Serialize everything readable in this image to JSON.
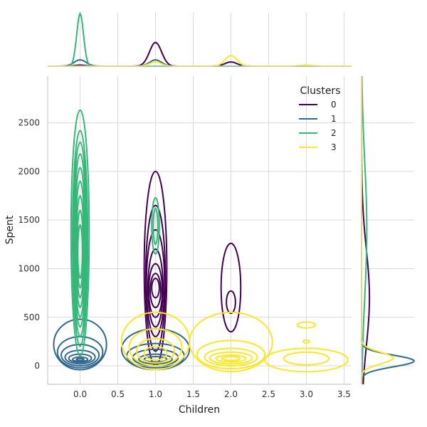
{
  "chart_data": {
    "type": "kde-jointplot",
    "xlabel": "Children",
    "ylabel": "Spent",
    "xlim": [
      -0.43,
      3.6
    ],
    "ylim": [
      -190,
      2980
    ],
    "x_ticks": [
      "0.0",
      "0.5",
      "1.0",
      "1.5",
      "2.0",
      "2.5",
      "3.0",
      "3.5"
    ],
    "x_tick_values": [
      0,
      0.5,
      1,
      1.5,
      2,
      2.5,
      3,
      3.5
    ],
    "y_ticks": [
      "0",
      "500",
      "1000",
      "1500",
      "2000",
      "2500"
    ],
    "y_tick_values": [
      0,
      500,
      1000,
      1500,
      2000,
      2500
    ],
    "grid": true,
    "legend": {
      "title": "Clusters",
      "placement": "top-right",
      "entries": [
        "0",
        "1",
        "2",
        "3"
      ]
    },
    "colors": {
      "0": "#440154",
      "1": "#31688e",
      "2": "#35b779",
      "3": "#fde725"
    },
    "series": [
      {
        "name": "0",
        "color": "#440154",
        "clusters": [
          {
            "x": 1.0,
            "y": 1000,
            "contour_x_halfwidths": [
              0.15,
              0.13,
              0.12,
              0.1,
              0.09,
              0.07,
              0.05
            ],
            "contour_y_ranges": [
              [
                0,
                2000
              ],
              [
                150,
                1650
              ],
              [
                300,
                1400
              ],
              [
                400,
                1200
              ],
              [
                500,
                1050
              ],
              [
                600,
                950
              ],
              [
                700,
                900
              ]
            ]
          },
          {
            "x": 2.0,
            "y": 800,
            "contour_x_halfwidths": [
              0.13,
              0.06
            ],
            "contour_y_ranges": [
              [
                350,
                1260
              ],
              [
                540,
                770
              ]
            ]
          }
        ],
        "marginal_x_peaks": [
          {
            "x": 1.0,
            "rel_height": 0.45
          },
          {
            "x": 2.0,
            "rel_height": 0.08
          },
          {
            "x": 0.0,
            "rel_height": 0.02
          }
        ],
        "marginal_y_peak": {
          "y": 700,
          "rel_width": 0.15
        }
      },
      {
        "name": "1",
        "color": "#31688e",
        "clusters": [
          {
            "x": 0.0,
            "y": 80,
            "contour_x_halfwidths": [
              0.35,
              0.3,
              0.25,
              0.2,
              0.15,
              0.1,
              0.05
            ],
            "contour_y_ranges": [
              [
                -40,
                480
              ],
              [
                -20,
                300
              ],
              [
                0,
                220
              ],
              [
                20,
                160
              ],
              [
                35,
                120
              ],
              [
                45,
                90
              ],
              [
                55,
                75
              ]
            ]
          },
          {
            "x": 1.0,
            "y": 80,
            "contour_x_halfwidths": [
              0.45,
              0.38,
              0.3,
              0.22,
              0.15
            ],
            "contour_y_ranges": [
              [
                -40,
                380
              ],
              [
                -20,
                230
              ],
              [
                0,
                170
              ],
              [
                20,
                120
              ],
              [
                40,
                95
              ]
            ]
          }
        ],
        "marginal_x_peaks": [
          {
            "x": 0.0,
            "rel_height": 0.12
          },
          {
            "x": 1.0,
            "rel_height": 0.12
          }
        ],
        "marginal_y_peak": {
          "y": 50,
          "rel_width": 1.0
        }
      },
      {
        "name": "2",
        "color": "#35b779",
        "clusters": [
          {
            "x": 0.0,
            "y": 1300,
            "contour_x_halfwidths": [
              0.12,
              0.1,
              0.09,
              0.08,
              0.07,
              0.06,
              0.05,
              0.04,
              0.03
            ],
            "contour_y_ranges": [
              [
                100,
                2630
              ],
              [
                200,
                2420
              ],
              [
                300,
                2300
              ],
              [
                400,
                2180
              ],
              [
                500,
                2040
              ],
              [
                600,
                1900
              ],
              [
                700,
                1750
              ],
              [
                800,
                1600
              ],
              [
                900,
                1450
              ]
            ]
          },
          {
            "x": 1.0,
            "y": 1450,
            "contour_x_halfwidths": [
              0.05,
              0.03
            ],
            "contour_y_ranges": [
              [
                1150,
                1730
              ],
              [
                1250,
                1620
              ]
            ]
          }
        ],
        "marginal_x_peaks": [
          {
            "x": 0.0,
            "rel_height": 1.0
          }
        ],
        "marginal_y_peak": {
          "y": 1400,
          "rel_width": 0.1
        }
      },
      {
        "name": "3",
        "color": "#fde725",
        "clusters": [
          {
            "x": 1.0,
            "y": 150,
            "contour_x_halfwidths": [
              0.45,
              0.35,
              0.25,
              0.15
            ],
            "contour_y_ranges": [
              [
                -40,
                550
              ],
              [
                0,
                380
              ],
              [
                30,
                280
              ],
              [
                60,
                200
              ]
            ]
          },
          {
            "x": 2.0,
            "y": 80,
            "contour_x_halfwidths": [
              0.55,
              0.45,
              0.35,
              0.28,
              0.2,
              0.12
            ],
            "contour_y_ranges": [
              [
                -60,
                550
              ],
              [
                -30,
                260
              ],
              [
                0,
                180
              ],
              [
                20,
                140
              ],
              [
                40,
                110
              ],
              [
                55,
                95
              ]
            ]
          },
          {
            "x": 3.0,
            "y": 80,
            "contour_x_halfwidths": [
              0.55,
              0.3
            ],
            "contour_y_ranges": [
              [
                -60,
                180
              ],
              [
                10,
                140
              ]
            ]
          },
          {
            "x": 3.0,
            "y": 420,
            "contour_x_halfwidths": [
              0.12
            ],
            "contour_y_ranges": [
              [
                390,
                450
              ]
            ]
          },
          {
            "x": 3.0,
            "y": 250,
            "contour_x_halfwidths": [
              0.04
            ],
            "contour_y_ranges": [
              [
                235,
                265
              ]
            ]
          }
        ],
        "marginal_x_peaks": [
          {
            "x": 1.0,
            "rel_height": 0.08
          },
          {
            "x": 2.0,
            "rel_height": 0.2
          },
          {
            "x": 3.0,
            "rel_height": 0.02
          }
        ],
        "marginal_y_peak": {
          "y": 80,
          "rel_width": 0.6
        }
      }
    ]
  }
}
